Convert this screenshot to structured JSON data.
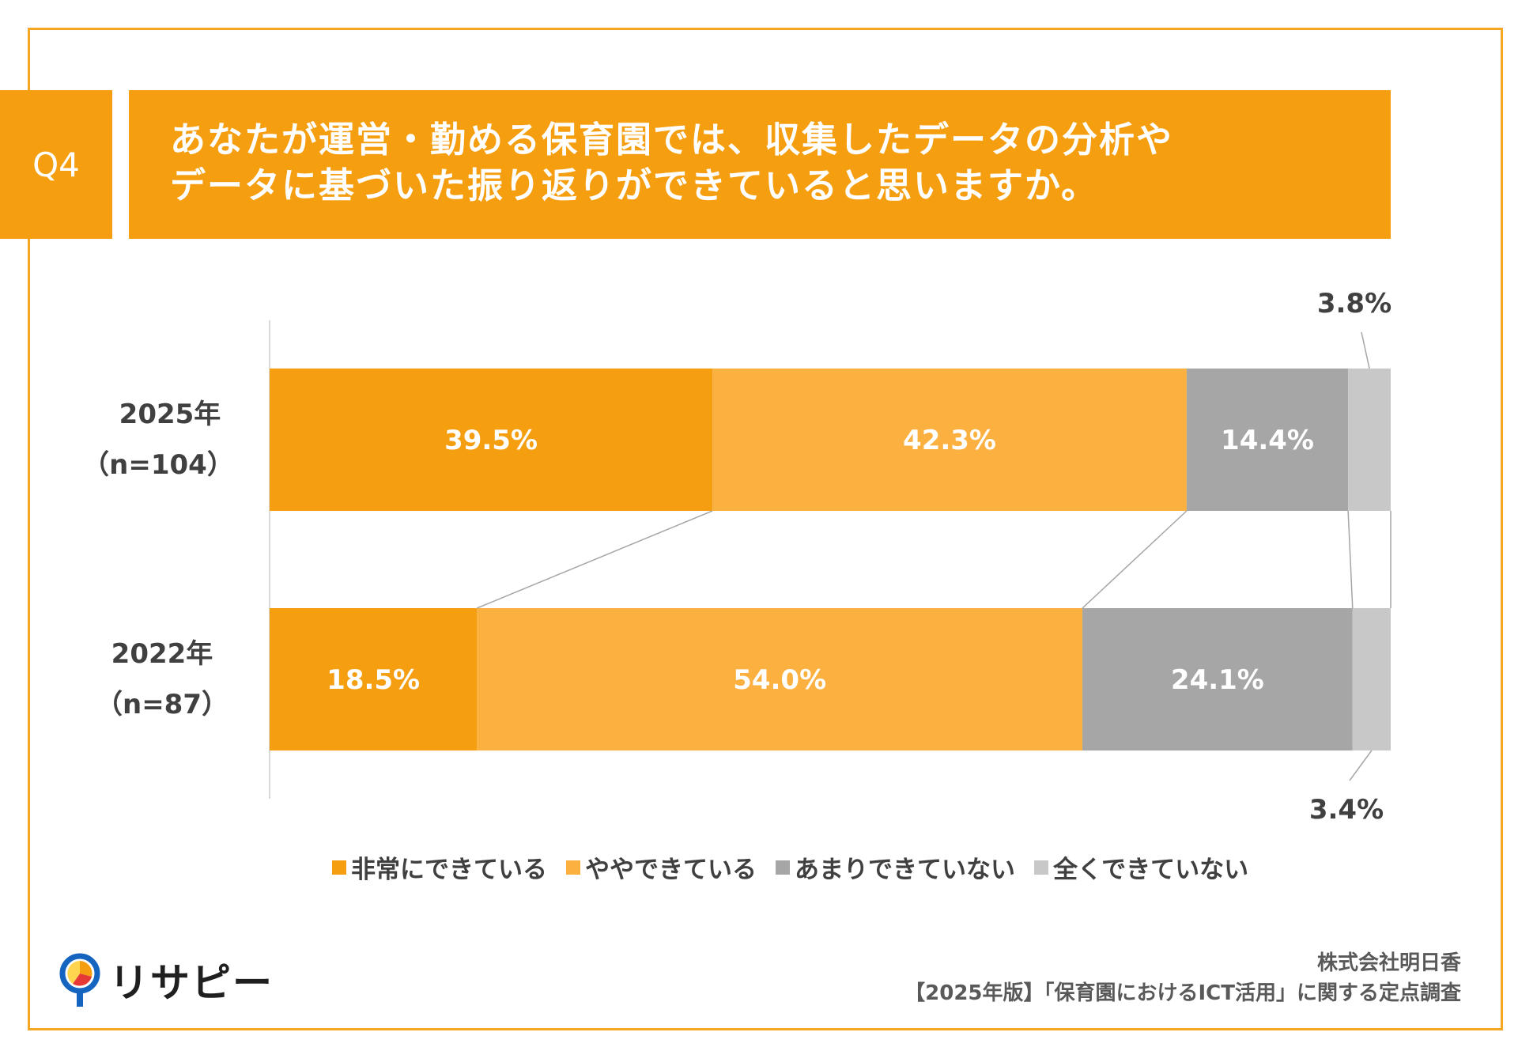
{
  "question": {
    "badge": "Q4",
    "line1": "あなたが運営・勤める保育園では、収集したデータの分析や",
    "line2": "データに基づいた振り返りができていると思いますか。"
  },
  "chart_data": {
    "type": "bar",
    "orientation": "horizontal",
    "stacked": true,
    "percent": true,
    "categories": [
      {
        "year": "2025年",
        "n": "（n=104）"
      },
      {
        "year": "2022年",
        "n": "（n=87）"
      }
    ],
    "series": [
      {
        "name": "非常にできている",
        "color": "#F59E10",
        "values": [
          39.5,
          18.5
        ],
        "labels": [
          "39.5%",
          "18.5%"
        ]
      },
      {
        "name": "ややできている",
        "color": "#FBB040",
        "values": [
          42.3,
          54.0
        ],
        "labels": [
          "42.3%",
          "54.0%"
        ]
      },
      {
        "name": "あまりできていない",
        "color": "#A6A6A6",
        "values": [
          14.4,
          24.1
        ],
        "labels": [
          "14.4%",
          "24.1%"
        ]
      },
      {
        "name": "全くできていない",
        "color": "#C8C8C8",
        "values": [
          3.8,
          3.4
        ],
        "labels": [
          "3.8%",
          "3.4%"
        ]
      }
    ],
    "legend_position": "bottom"
  },
  "footer": {
    "logo_text": "リサピー",
    "company": "株式会社明日香",
    "survey": "【2025年版】「保育園におけるICT活用」に関する定点調査"
  }
}
